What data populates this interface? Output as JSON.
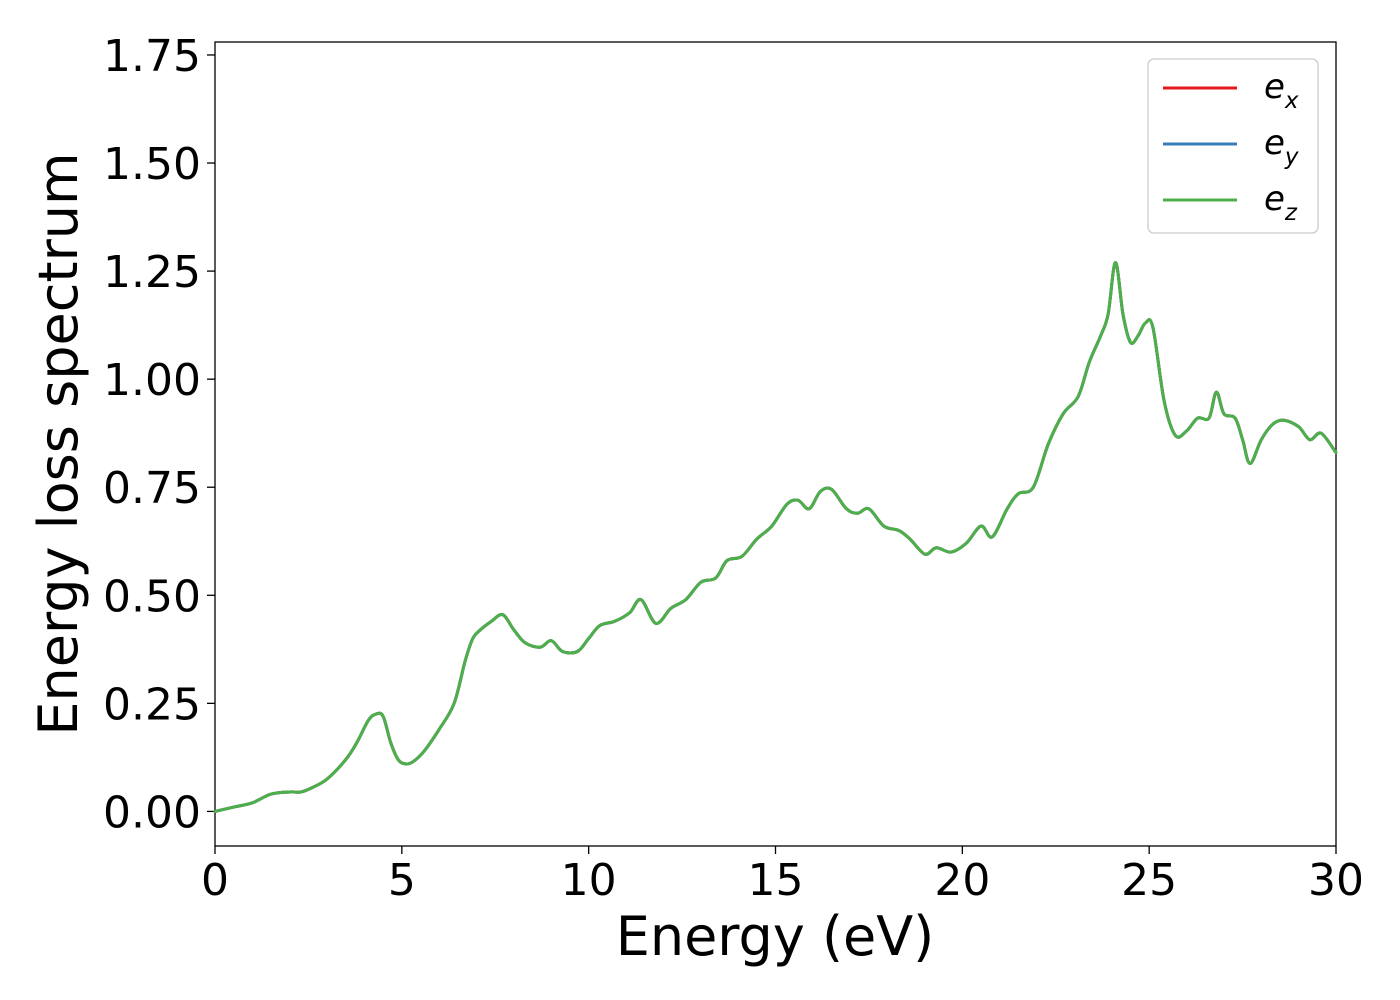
{
  "chart_data": {
    "type": "line",
    "xlabel": "Energy (eV)",
    "ylabel": "Energy loss spectrum",
    "xlim": [
      0,
      30
    ],
    "ylim": [
      -0.08,
      1.78
    ],
    "xticks": [
      0,
      5,
      10,
      15,
      20,
      25,
      30
    ],
    "xtick_labels": [
      "0",
      "5",
      "10",
      "15",
      "20",
      "25",
      "30"
    ],
    "yticks": [
      0.0,
      0.25,
      0.5,
      0.75,
      1.0,
      1.25,
      1.5,
      1.75
    ],
    "ytick_labels": [
      "0.00",
      "0.25",
      "0.50",
      "0.75",
      "1.00",
      "1.25",
      "1.50",
      "1.75"
    ],
    "grid": false,
    "legend_position": "top-right",
    "series": [
      {
        "name": "e",
        "sub": "x",
        "color": "#e41a1c",
        "x": [
          0,
          0.5,
          1.0,
          1.5,
          2.0,
          2.3,
          2.6,
          3.0,
          3.5,
          3.8,
          4.1,
          4.3,
          4.5,
          4.7,
          4.9,
          5.1,
          5.3,
          5.6,
          6.0,
          6.4,
          6.7,
          6.9,
          7.1,
          7.4,
          7.7,
          8.0,
          8.3,
          8.7,
          9.0,
          9.3,
          9.7,
          10.0,
          10.3,
          10.7,
          11.1,
          11.4,
          11.8,
          12.2,
          12.6,
          13.0,
          13.4,
          13.7,
          14.1,
          14.5,
          14.9,
          15.3,
          15.6,
          15.9,
          16.2,
          16.5,
          16.9,
          17.2,
          17.5,
          17.9,
          18.3,
          18.6,
          19.0,
          19.3,
          19.7,
          20.1,
          20.5,
          20.8,
          21.2,
          21.5,
          21.9,
          22.3,
          22.7,
          23.1,
          23.4,
          23.7,
          23.9,
          24.1,
          24.3,
          24.5,
          24.7,
          24.9,
          25.1,
          25.4,
          25.7,
          26.0,
          26.3,
          26.6,
          26.8,
          27.0,
          27.3,
          27.5,
          27.7,
          28.0,
          28.3,
          28.6,
          29.0,
          29.3,
          29.6,
          30.0
        ],
        "values": [
          0.0,
          0.01,
          0.02,
          0.04,
          0.045,
          0.045,
          0.055,
          0.075,
          0.12,
          0.16,
          0.21,
          0.225,
          0.22,
          0.16,
          0.12,
          0.11,
          0.115,
          0.14,
          0.19,
          0.25,
          0.35,
          0.4,
          0.42,
          0.44,
          0.455,
          0.42,
          0.39,
          0.38,
          0.395,
          0.37,
          0.37,
          0.4,
          0.43,
          0.44,
          0.46,
          0.49,
          0.435,
          0.47,
          0.49,
          0.53,
          0.54,
          0.58,
          0.59,
          0.63,
          0.66,
          0.71,
          0.72,
          0.7,
          0.74,
          0.745,
          0.7,
          0.69,
          0.7,
          0.66,
          0.65,
          0.63,
          0.595,
          0.61,
          0.6,
          0.62,
          0.66,
          0.635,
          0.7,
          0.735,
          0.75,
          0.85,
          0.92,
          0.96,
          1.04,
          1.1,
          1.15,
          1.27,
          1.15,
          1.085,
          1.1,
          1.13,
          1.12,
          0.95,
          0.87,
          0.88,
          0.91,
          0.91,
          0.97,
          0.92,
          0.91,
          0.86,
          0.805,
          0.86,
          0.895,
          0.905,
          0.89,
          0.86,
          0.875,
          0.83
        ]
      },
      {
        "name": "e",
        "sub": "y",
        "color": "#377eb8",
        "x": [
          0,
          0.5,
          1.0,
          1.5,
          2.0,
          2.3,
          2.6,
          3.0,
          3.5,
          3.8,
          4.1,
          4.3,
          4.5,
          4.7,
          4.9,
          5.1,
          5.3,
          5.6,
          6.0,
          6.4,
          6.7,
          6.9,
          7.1,
          7.4,
          7.7,
          8.0,
          8.3,
          8.7,
          9.0,
          9.3,
          9.7,
          10.0,
          10.3,
          10.7,
          11.1,
          11.4,
          11.8,
          12.2,
          12.6,
          13.0,
          13.4,
          13.7,
          14.1,
          14.5,
          14.9,
          15.3,
          15.6,
          15.9,
          16.2,
          16.5,
          16.9,
          17.2,
          17.5,
          17.9,
          18.3,
          18.6,
          19.0,
          19.3,
          19.7,
          20.1,
          20.5,
          20.8,
          21.2,
          21.5,
          21.9,
          22.3,
          22.7,
          23.1,
          23.4,
          23.7,
          23.9,
          24.1,
          24.3,
          24.5,
          24.7,
          24.9,
          25.1,
          25.4,
          25.7,
          26.0,
          26.3,
          26.6,
          26.8,
          27.0,
          27.3,
          27.5,
          27.7,
          28.0,
          28.3,
          28.6,
          29.0,
          29.3,
          29.6,
          30.0
        ],
        "values": [
          0.0,
          0.01,
          0.02,
          0.04,
          0.045,
          0.045,
          0.055,
          0.075,
          0.12,
          0.16,
          0.21,
          0.225,
          0.22,
          0.16,
          0.12,
          0.11,
          0.115,
          0.14,
          0.19,
          0.25,
          0.35,
          0.4,
          0.42,
          0.44,
          0.455,
          0.42,
          0.39,
          0.38,
          0.395,
          0.37,
          0.37,
          0.4,
          0.43,
          0.44,
          0.46,
          0.49,
          0.435,
          0.47,
          0.49,
          0.53,
          0.54,
          0.58,
          0.59,
          0.63,
          0.66,
          0.71,
          0.72,
          0.7,
          0.74,
          0.745,
          0.7,
          0.69,
          0.7,
          0.66,
          0.65,
          0.63,
          0.595,
          0.61,
          0.6,
          0.62,
          0.66,
          0.635,
          0.7,
          0.735,
          0.75,
          0.85,
          0.92,
          0.96,
          1.04,
          1.1,
          1.15,
          1.27,
          1.15,
          1.085,
          1.1,
          1.13,
          1.12,
          0.95,
          0.87,
          0.88,
          0.91,
          0.91,
          0.97,
          0.92,
          0.91,
          0.86,
          0.805,
          0.86,
          0.895,
          0.905,
          0.89,
          0.86,
          0.875,
          0.83
        ]
      },
      {
        "name": "e",
        "sub": "z",
        "color": "#4daf4a",
        "x": [
          0,
          0.5,
          1.0,
          1.5,
          2.0,
          2.3,
          2.6,
          3.0,
          3.5,
          3.8,
          4.1,
          4.3,
          4.5,
          4.7,
          4.9,
          5.1,
          5.3,
          5.6,
          6.0,
          6.4,
          6.7,
          6.9,
          7.1,
          7.4,
          7.7,
          8.0,
          8.3,
          8.7,
          9.0,
          9.3,
          9.7,
          10.0,
          10.3,
          10.7,
          11.1,
          11.4,
          11.8,
          12.2,
          12.6,
          13.0,
          13.4,
          13.7,
          14.1,
          14.5,
          14.9,
          15.3,
          15.6,
          15.9,
          16.2,
          16.5,
          16.9,
          17.2,
          17.5,
          17.9,
          18.3,
          18.6,
          19.0,
          19.3,
          19.7,
          20.1,
          20.5,
          20.8,
          21.2,
          21.5,
          21.9,
          22.3,
          22.7,
          23.1,
          23.4,
          23.7,
          23.9,
          24.1,
          24.3,
          24.5,
          24.7,
          24.9,
          25.1,
          25.4,
          25.7,
          26.0,
          26.3,
          26.6,
          26.8,
          27.0,
          27.3,
          27.5,
          27.7,
          28.0,
          28.3,
          28.6,
          29.0,
          29.3,
          29.6,
          30.0
        ],
        "values": [
          0.0,
          0.01,
          0.02,
          0.04,
          0.045,
          0.045,
          0.055,
          0.075,
          0.12,
          0.16,
          0.21,
          0.225,
          0.22,
          0.16,
          0.12,
          0.11,
          0.115,
          0.14,
          0.19,
          0.25,
          0.35,
          0.4,
          0.42,
          0.44,
          0.455,
          0.42,
          0.39,
          0.38,
          0.395,
          0.37,
          0.37,
          0.4,
          0.43,
          0.44,
          0.46,
          0.49,
          0.435,
          0.47,
          0.49,
          0.53,
          0.54,
          0.58,
          0.59,
          0.63,
          0.66,
          0.71,
          0.72,
          0.7,
          0.74,
          0.745,
          0.7,
          0.69,
          0.7,
          0.66,
          0.65,
          0.63,
          0.595,
          0.61,
          0.6,
          0.62,
          0.66,
          0.635,
          0.7,
          0.735,
          0.75,
          0.85,
          0.92,
          0.96,
          1.04,
          1.1,
          1.15,
          1.27,
          1.15,
          1.085,
          1.1,
          1.13,
          1.12,
          0.95,
          0.87,
          0.88,
          0.91,
          0.91,
          0.97,
          0.92,
          0.91,
          0.86,
          0.805,
          0.86,
          0.895,
          0.905,
          0.89,
          0.86,
          0.875,
          0.83
        ]
      }
    ]
  }
}
